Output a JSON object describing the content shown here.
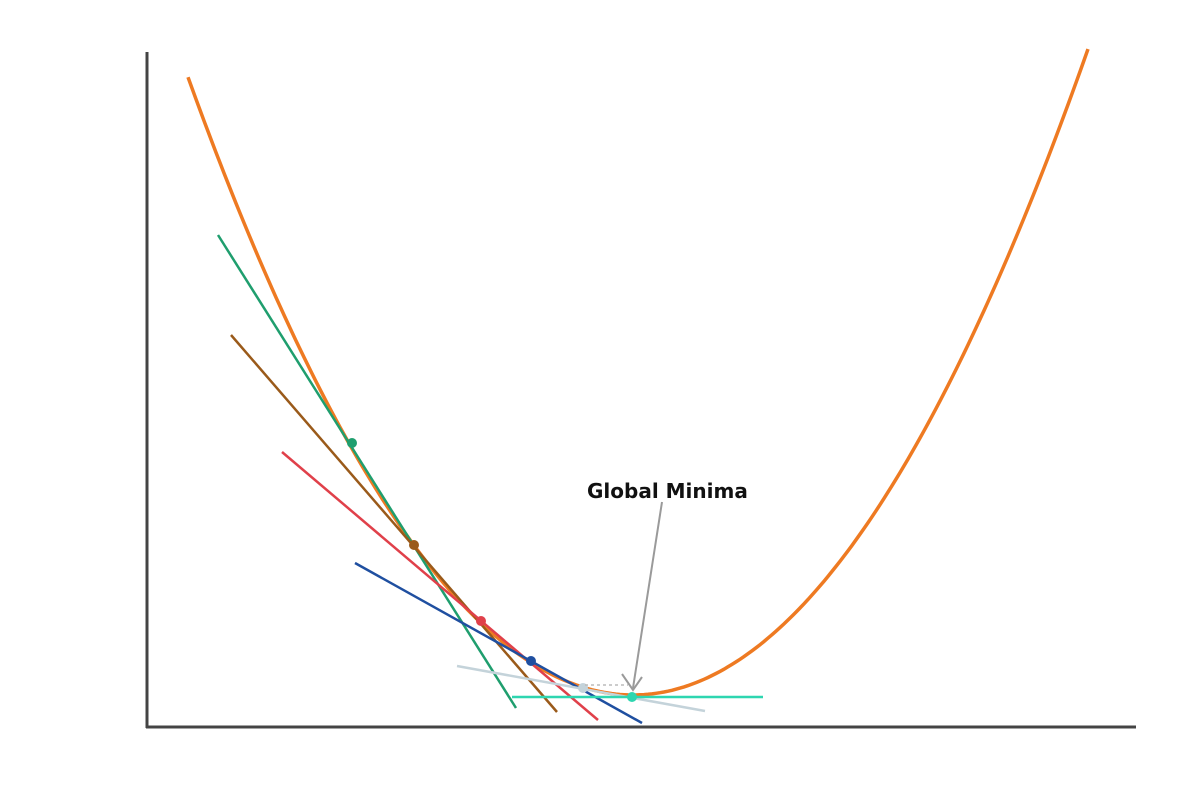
{
  "annotation": {
    "text": "Global Minima"
  },
  "colors": {
    "curve": "#ee7a22",
    "axes": "#444444",
    "arrow": "#9a9a9a",
    "tangents": [
      "#1f9e6e",
      "#9a5a1a",
      "#e0404a",
      "#1f4fa0",
      "#c4d3da",
      "#2ed6b0"
    ]
  }
}
